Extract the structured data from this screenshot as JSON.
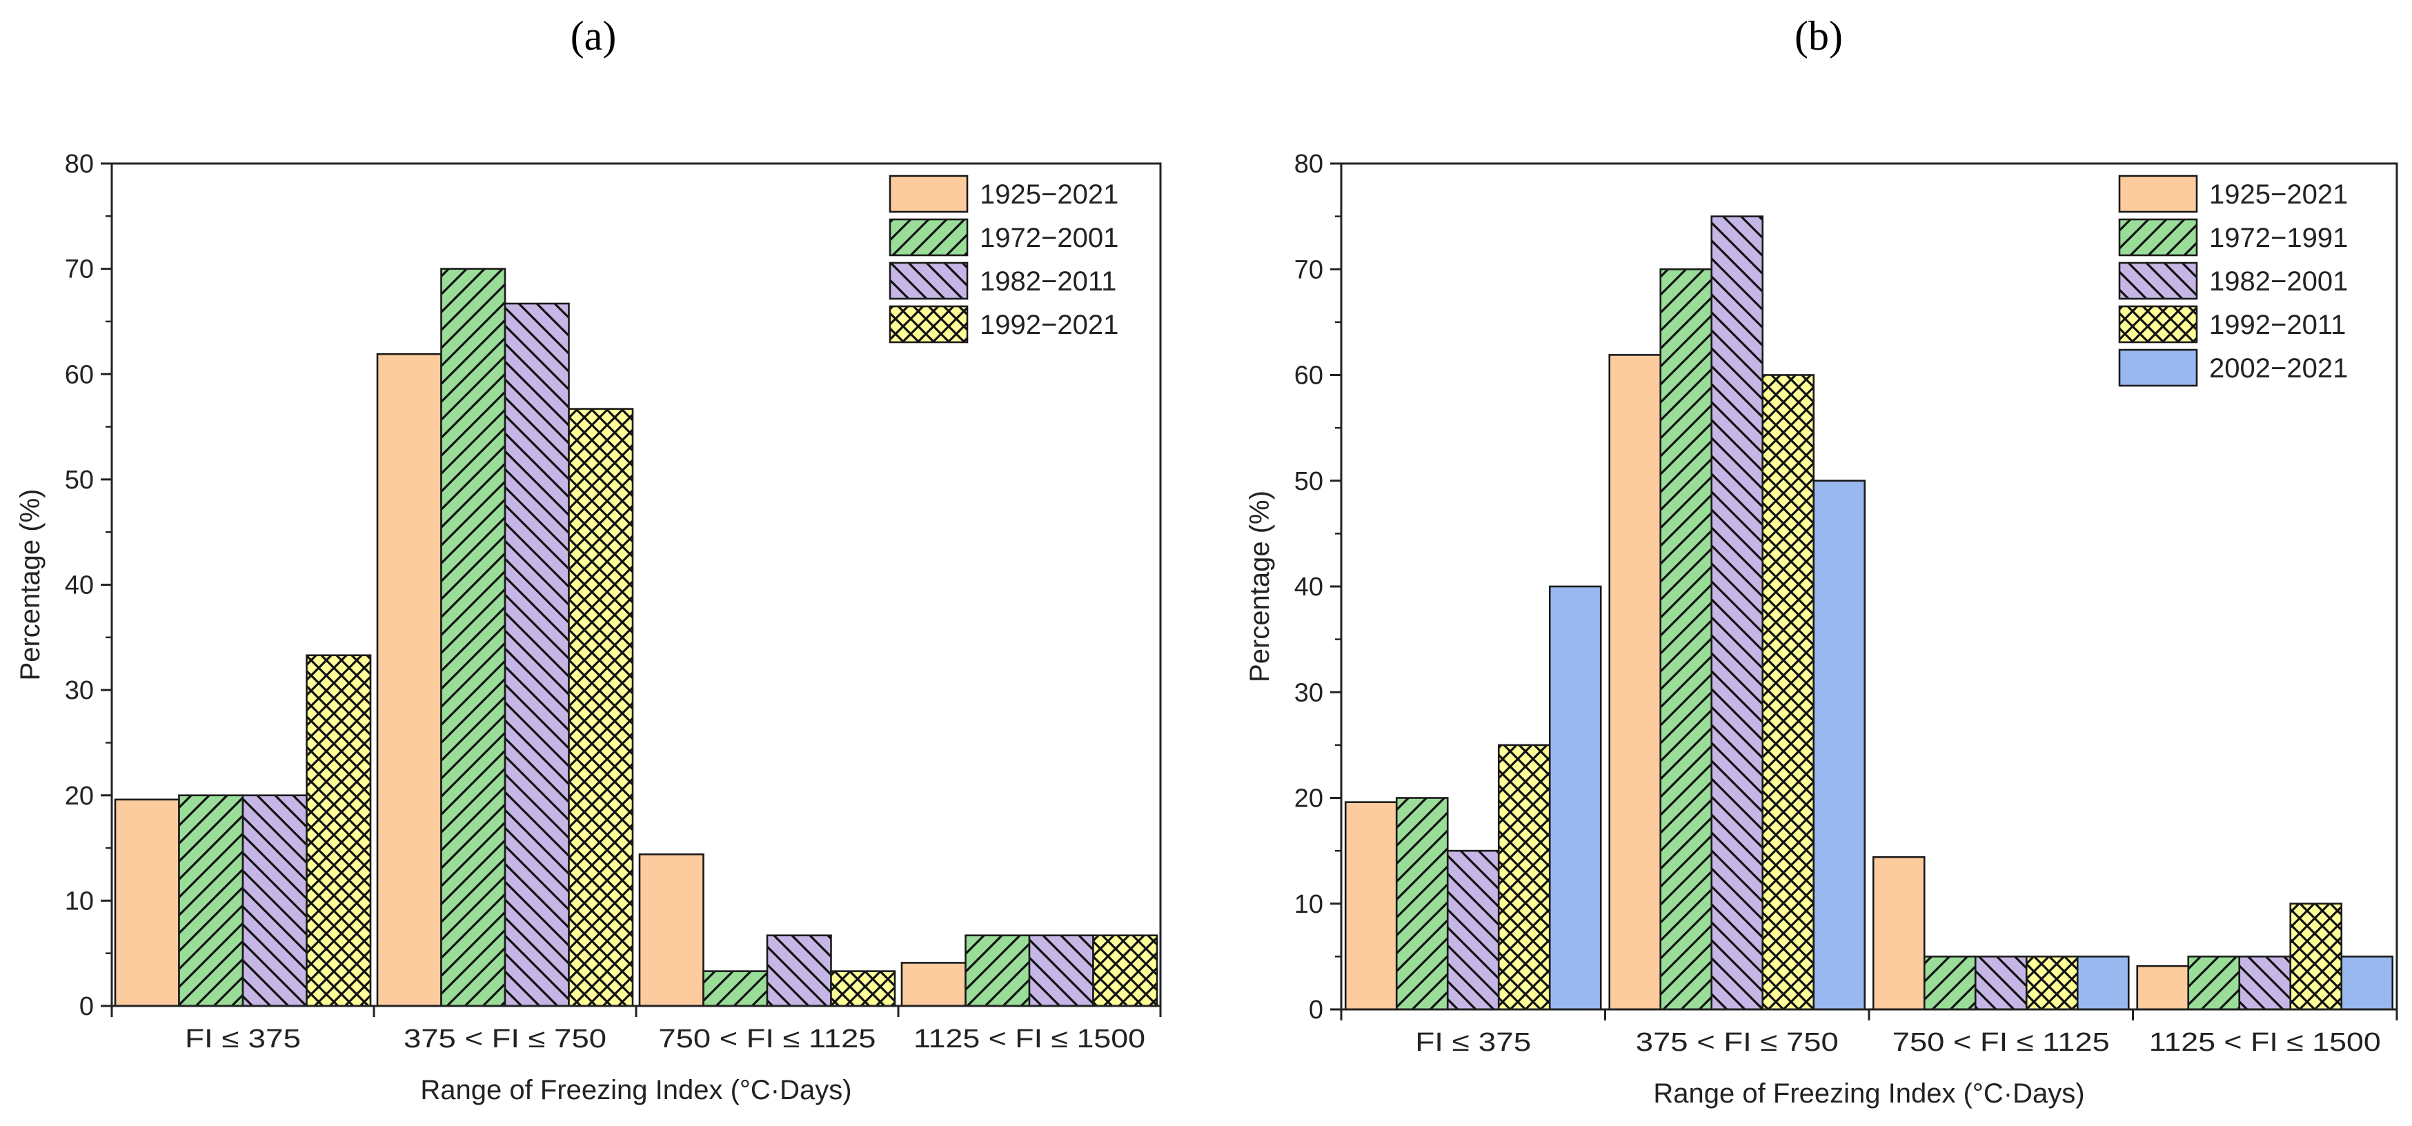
{
  "figure": {
    "panels": [
      "(a)",
      "(b)"
    ]
  },
  "colors": {
    "1925-2021": "#FCCB9E",
    "green": "#99DD99",
    "purple": "#C5B6E6",
    "yellow": "#FFFF99",
    "blue": "#99B8F0"
  },
  "chart_data": [
    {
      "panel": "(a)",
      "type": "bar",
      "title": "",
      "xlabel": "Range of Freezing Index (°C·Days)",
      "ylabel": "Percentage (%)",
      "ylim": [
        0,
        80
      ],
      "yticks": [
        0,
        10,
        20,
        30,
        40,
        50,
        60,
        70,
        80
      ],
      "ytick_labels": [
        "0",
        "10",
        "20",
        "30",
        "40",
        "50",
        "60",
        "70",
        "80"
      ],
      "categories": [
        "FI ≤ 375",
        "375 < FI ≤ 750",
        "750 < FI ≤ 1125",
        "1125 < FI ≤ 1500"
      ],
      "legend_position": "top-right",
      "series": [
        {
          "name": "1925−2021",
          "values": [
            19.6,
            61.9,
            14.4,
            4.1
          ],
          "color": "#FCCB9E",
          "pattern": "none"
        },
        {
          "name": "1972−2001",
          "values": [
            20.0,
            70.0,
            3.3,
            6.7
          ],
          "color": "#99DD99",
          "pattern": "diag-up"
        },
        {
          "name": "1982−2011",
          "values": [
            20.0,
            66.7,
            6.7,
            6.7
          ],
          "color": "#C5B6E6",
          "pattern": "diag-down"
        },
        {
          "name": "1992−2021",
          "values": [
            33.3,
            56.7,
            3.3,
            6.7
          ],
          "color": "#FFFF99",
          "pattern": "cross"
        }
      ]
    },
    {
      "panel": "(b)",
      "type": "bar",
      "title": "",
      "xlabel": "Range of Freezing Index (°C·Days)",
      "ylabel": "Percentage (%)",
      "ylim": [
        0,
        80
      ],
      "yticks": [
        0,
        10,
        20,
        30,
        40,
        50,
        60,
        70,
        80
      ],
      "ytick_labels": [
        "0",
        "10",
        "20",
        "30",
        "40",
        "50",
        "60",
        "70",
        "80"
      ],
      "categories": [
        "FI ≤ 375",
        "375 < FI ≤ 750",
        "750 < FI ≤ 1125",
        "1125 < FI ≤ 1500"
      ],
      "legend_position": "top-right",
      "series": [
        {
          "name": "1925−2021",
          "values": [
            19.6,
            61.9,
            14.4,
            4.1
          ],
          "color": "#FCCB9E",
          "pattern": "none"
        },
        {
          "name": "1972−1991",
          "values": [
            20.0,
            70.0,
            5.0,
            5.0
          ],
          "color": "#99DD99",
          "pattern": "diag-up"
        },
        {
          "name": "1982−2001",
          "values": [
            15.0,
            75.0,
            5.0,
            5.0
          ],
          "color": "#C5B6E6",
          "pattern": "diag-down"
        },
        {
          "name": "1992−2011",
          "values": [
            25.0,
            60.0,
            5.0,
            10.0
          ],
          "color": "#FFFF99",
          "pattern": "cross"
        },
        {
          "name": "2002−2021",
          "values": [
            40.0,
            50.0,
            5.0,
            5.0
          ],
          "color": "#99B8F0",
          "pattern": "none"
        }
      ]
    }
  ]
}
